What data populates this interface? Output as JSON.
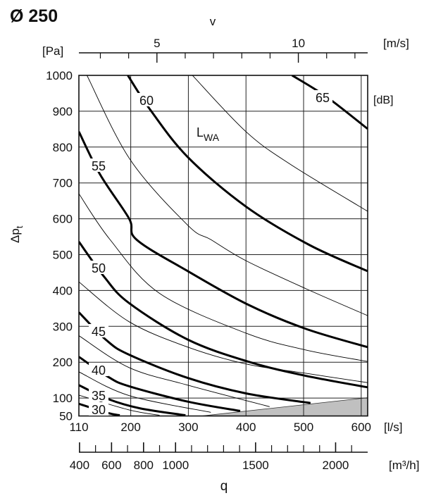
{
  "title": "Ø 250",
  "chart_data": {
    "type": "line",
    "title": "Ø 250",
    "xlabel": "q",
    "xunit": "[l/s]",
    "x2unit": "[m³/h]",
    "toplabel": "v",
    "topunit": "[m/s]",
    "ylabel_main": "Δp",
    "ylabel_sub": "t",
    "yunit": "[Pa]",
    "series_label_main": "L",
    "series_label_sub": "WA",
    "series_unit": "[dB]",
    "xlim": [
      110,
      611
    ],
    "ylim": [
      50,
      1000
    ],
    "grid": true,
    "x_ticks": [
      110,
      200,
      300,
      400,
      500,
      600
    ],
    "y_ticks": [
      1000,
      900,
      800,
      700,
      600,
      500,
      400,
      300,
      200,
      100,
      50
    ],
    "v_ticks_major": [
      5,
      10
    ],
    "v_ticks_minor": [
      3,
      4,
      6,
      7,
      8,
      9,
      11,
      12
    ],
    "m3h_tick_labels": [
      400,
      600,
      800,
      1000,
      1500,
      2000
    ],
    "m3h_ticks_range": [
      400,
      2100,
      100
    ],
    "shaded_region": [
      [
        323,
        50
      ],
      [
        611,
        50
      ],
      [
        611,
        101
      ]
    ],
    "shaded_color": "#c0c0c0",
    "series": [
      {
        "name": "65",
        "thick": true,
        "points": [
          [
            480,
            1000
          ],
          [
            540,
            940
          ],
          [
            611,
            851
          ]
        ]
      },
      {
        "name": "60",
        "thick": true,
        "points": [
          [
            195,
            1000
          ],
          [
            233,
            906
          ],
          [
            299,
            772
          ],
          [
            400,
            634
          ],
          [
            510,
            527
          ],
          [
            611,
            454
          ]
        ]
      },
      {
        "name": "55",
        "thick": true,
        "points": [
          [
            110,
            843
          ],
          [
            147,
            723
          ],
          [
            197,
            601
          ],
          [
            210,
            542
          ],
          [
            299,
            454
          ],
          [
            403,
            361
          ],
          [
            504,
            293
          ],
          [
            611,
            242
          ]
        ]
      },
      {
        "name": "50",
        "thick": true,
        "points": [
          [
            110,
            536
          ],
          [
            154,
            438
          ],
          [
            197,
            365
          ],
          [
            299,
            263
          ],
          [
            403,
            202
          ],
          [
            501,
            163
          ],
          [
            611,
            130
          ]
        ]
      },
      {
        "name": "45",
        "thick": true,
        "points": [
          [
            110,
            339
          ],
          [
            158,
            261
          ],
          [
            197,
            221
          ],
          [
            299,
            156
          ],
          [
            400,
            113
          ],
          [
            512,
            86
          ]
        ]
      },
      {
        "name": "40",
        "thick": true,
        "points": [
          [
            110,
            215
          ],
          [
            161,
            159
          ],
          [
            197,
            133
          ],
          [
            299,
            90
          ],
          [
            390,
            64
          ]
        ]
      },
      {
        "name": "35",
        "thick": true,
        "points": [
          [
            110,
            136
          ],
          [
            161,
            97
          ],
          [
            217,
            71
          ],
          [
            295,
            52
          ]
        ]
      },
      {
        "name": "30",
        "thick": true,
        "points": [
          [
            110,
            84
          ],
          [
            161,
            58
          ],
          [
            181,
            52
          ]
        ]
      },
      {
        "thick": false,
        "points": [
          [
            307,
            1000
          ],
          [
            400,
            843
          ],
          [
            477,
            752
          ],
          [
            611,
            621
          ]
        ]
      },
      {
        "thick": false,
        "points": [
          [
            124,
            1000
          ],
          [
            199,
            765
          ],
          [
            299,
            582
          ],
          [
            339,
            542
          ],
          [
            400,
            483
          ],
          [
            504,
            405
          ],
          [
            611,
            330
          ]
        ]
      },
      {
        "thick": false,
        "points": [
          [
            110,
            670
          ],
          [
            164,
            542
          ],
          [
            250,
            392
          ],
          [
            400,
            281
          ],
          [
            504,
            234
          ],
          [
            611,
            202
          ]
        ]
      },
      {
        "thick": false,
        "points": [
          [
            110,
            424
          ],
          [
            197,
            313
          ],
          [
            299,
            242
          ],
          [
            400,
            195
          ],
          [
            504,
            169
          ],
          [
            611,
            143
          ]
        ]
      },
      {
        "thick": false,
        "points": [
          [
            110,
            274
          ],
          [
            197,
            185
          ],
          [
            299,
            136
          ],
          [
            441,
            76
          ]
        ]
      },
      {
        "thick": false,
        "points": [
          [
            110,
            173
          ],
          [
            197,
            107
          ],
          [
            339,
            60
          ]
        ]
      },
      {
        "thick": false,
        "points": [
          [
            110,
            108
          ],
          [
            197,
            67
          ],
          [
            250,
            52
          ]
        ]
      }
    ]
  }
}
